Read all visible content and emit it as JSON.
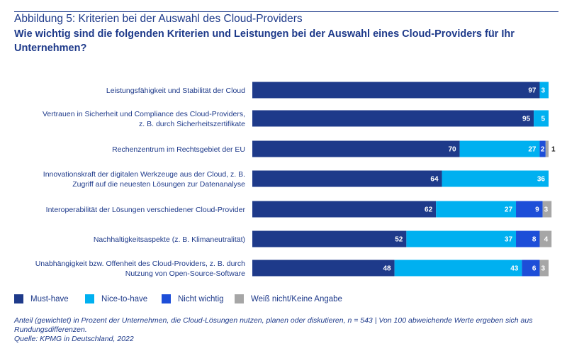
{
  "header": {
    "title": "Abbildung 5: Kriterien bei der Auswahl des Cloud-Providers",
    "subtitle": "Wie wichtig sind die folgenden Kriterien und Leistungen bei der Auswahl eines Cloud-Providers für Ihr Unternehmen?"
  },
  "chart_data": {
    "type": "bar",
    "orientation": "horizontal",
    "stacked": true,
    "title": "Wie wichtig sind die folgenden Kriterien und Leistungen bei der Auswahl eines Cloud-Providers für Ihr Unternehmen?",
    "xlabel": "",
    "ylabel": "",
    "xlim": [
      0,
      100
    ],
    "grid": false,
    "legend_position": "bottom",
    "categories": [
      [
        "Leistungsfähigkeit und Stabilität der Cloud"
      ],
      [
        "Vertrauen in Sicherheit und Compliance des Cloud-Providers,",
        "z. B. durch Sicherheitszertifikate"
      ],
      [
        "Rechenzentrum im Rechtsgebiet der EU"
      ],
      [
        "Innovationskraft der digitalen Werkzeuge aus der Cloud, z. B.",
        "Zugriff auf die neuesten Lösungen zur Datenanalyse"
      ],
      [
        "Interoperabilität der Lösungen verschiedener Cloud-Provider"
      ],
      [
        "Nachhaltigkeitsaspekte (z. B. Klimaneutralität)"
      ],
      [
        "Unabhängigkeit bzw. Offenheit des Cloud-Providers, z. B. durch",
        "Nutzung von Open-Source-Software"
      ]
    ],
    "series": [
      {
        "name": "Must-have",
        "color": "#1e3a8a",
        "values": [
          97,
          95,
          70,
          64,
          62,
          52,
          48
        ]
      },
      {
        "name": "Nice-to-have",
        "color": "#00b0f0",
        "values": [
          3,
          5,
          27,
          36,
          27,
          37,
          43
        ]
      },
      {
        "name": "Nicht wichtig",
        "color": "#1d4ed8",
        "values": [
          0,
          0,
          2,
          0,
          9,
          8,
          6
        ]
      },
      {
        "name": "Weiß nicht/Keine Angabe",
        "color": "#a6a6a6",
        "values": [
          0,
          0,
          1,
          0,
          3,
          4,
          3
        ]
      }
    ]
  },
  "legend": {
    "items": [
      {
        "label": "Must-have",
        "color": "#1e3a8a"
      },
      {
        "label": "Nice-to-have",
        "color": "#00b0f0"
      },
      {
        "label": "Nicht wichtig",
        "color": "#1d4ed8"
      },
      {
        "label": "Weiß nicht/Keine Angabe",
        "color": "#a6a6a6"
      }
    ]
  },
  "footer": {
    "note": "Anteil (gewichtet) in Prozent der Unternehmen, die Cloud-Lösungen nutzen, planen oder diskutieren, n = 543 | Von 100 abweichende Werte ergeben sich aus Rundungsdifferenzen.",
    "source": "Quelle: KPMG in Deutschland, 2022"
  }
}
